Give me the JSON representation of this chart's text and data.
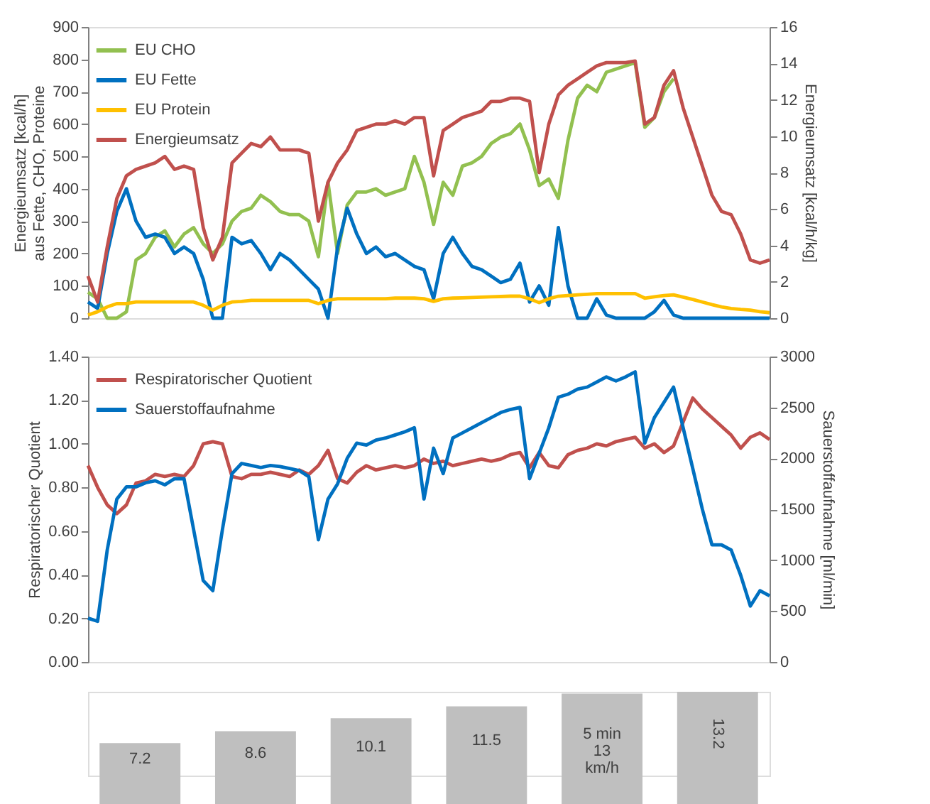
{
  "chart_data": [
    {
      "type": "line",
      "ylabel": "Energieumsatz [kcal/h]\naus  Fette, CHO, Proteine",
      "y2label": "Energieumsatz [kcal/h/kg]",
      "categories": [
        null,
        null,
        null,
        null,
        null,
        null,
        null,
        null,
        null,
        null,
        null,
        null,
        null,
        null,
        null,
        null,
        null,
        null,
        null,
        null,
        null,
        null,
        null,
        null,
        null,
        null,
        null,
        null,
        null,
        null,
        null,
        null,
        null,
        null,
        null,
        null,
        null,
        null,
        null,
        null,
        null,
        null,
        null,
        null,
        null,
        null,
        null,
        null,
        null,
        null,
        null,
        null,
        null,
        null,
        null,
        null,
        null,
        null,
        null,
        null,
        null,
        null,
        null,
        null,
        null,
        null,
        null,
        null,
        null,
        null,
        null,
        null
      ],
      "series": [
        {
          "name": "EU CHO",
          "color": "#92c050",
          "values": [
            80,
            60,
            0,
            0,
            20,
            180,
            200,
            250,
            270,
            220,
            260,
            280,
            230,
            200,
            230,
            300,
            330,
            340,
            380,
            360,
            330,
            320,
            320,
            300,
            190,
            420,
            200,
            350,
            390,
            390,
            400,
            380,
            390,
            400,
            500,
            420,
            290,
            420,
            380,
            470,
            480,
            500,
            540,
            560,
            570,
            600,
            520,
            410,
            430,
            370,
            550,
            680,
            720,
            700,
            760,
            770,
            780,
            790,
            590,
            620,
            700,
            740,
            null,
            null,
            null,
            null,
            null,
            null,
            null,
            null,
            null,
            null
          ]
        },
        {
          "name": "EU Fette",
          "color": "#0070c0",
          "values": [
            50,
            30,
            200,
            330,
            400,
            300,
            250,
            260,
            250,
            200,
            220,
            200,
            120,
            0,
            0,
            250,
            230,
            240,
            200,
            150,
            200,
            180,
            150,
            120,
            90,
            0,
            220,
            340,
            260,
            200,
            220,
            190,
            200,
            180,
            160,
            150,
            60,
            200,
            250,
            200,
            160,
            150,
            130,
            110,
            120,
            170,
            50,
            100,
            40,
            280,
            100,
            0,
            0,
            60,
            10,
            0,
            0,
            0,
            0,
            20,
            55,
            10,
            0,
            0,
            0,
            0,
            0,
            0,
            0,
            0,
            0,
            0
          ]
        },
        {
          "name": "EU Protein",
          "color": "#ffc000",
          "values": [
            10,
            20,
            35,
            45,
            45,
            50,
            50,
            50,
            50,
            50,
            50,
            50,
            40,
            25,
            40,
            50,
            52,
            55,
            55,
            55,
            55,
            55,
            55,
            55,
            45,
            55,
            60,
            60,
            60,
            60,
            60,
            60,
            62,
            62,
            62,
            60,
            52,
            60,
            62,
            63,
            64,
            65,
            66,
            67,
            68,
            68,
            60,
            48,
            60,
            68,
            70,
            72,
            74,
            76,
            76,
            76,
            76,
            76,
            62,
            66,
            70,
            72,
            65,
            58,
            50,
            42,
            35,
            30,
            27,
            25,
            20,
            17
          ]
        },
        {
          "name": "Energieumsatz",
          "color": "#c0504d",
          "values": [
            130,
            50,
            220,
            370,
            440,
            460,
            470,
            480,
            500,
            460,
            470,
            460,
            280,
            180,
            250,
            480,
            510,
            540,
            530,
            560,
            520,
            520,
            520,
            510,
            300,
            420,
            480,
            520,
            580,
            590,
            600,
            600,
            610,
            600,
            620,
            620,
            440,
            580,
            600,
            620,
            630,
            640,
            670,
            670,
            680,
            680,
            670,
            450,
            600,
            690,
            720,
            740,
            760,
            780,
            790,
            790,
            790,
            795,
            600,
            620,
            720,
            765,
            650,
            560,
            470,
            380,
            330,
            320,
            260,
            180,
            170,
            180
          ]
        }
      ],
      "ylim": [
        0,
        900
      ],
      "yticks": [
        0,
        100,
        200,
        300,
        400,
        500,
        600,
        700,
        800,
        900
      ],
      "y2lim": [
        0,
        16
      ],
      "y2ticks": [
        0,
        2,
        4,
        6,
        8,
        10,
        12,
        14,
        16
      ],
      "grid": false,
      "legend": "top left",
      "tick_labels": "y"
    },
    {
      "type": "line",
      "ylabel": "Respiratorischer Quotient",
      "y2label": "Sauerstoffaufnahme [ml/min]",
      "categories": [
        null,
        null,
        null,
        null,
        null,
        null,
        null,
        null,
        null,
        null,
        null,
        null,
        null,
        null,
        null,
        null,
        null,
        null,
        null,
        null,
        null,
        null,
        null,
        null,
        null,
        null,
        null,
        null,
        null,
        null,
        null,
        null,
        null,
        null,
        null,
        null,
        null,
        null,
        null,
        null,
        null,
        null,
        null,
        null,
        null,
        null,
        null,
        null,
        null,
        null,
        null,
        null,
        null,
        null,
        null,
        null,
        null,
        null,
        null,
        null,
        null,
        null,
        null,
        null,
        null,
        null,
        null,
        null,
        null,
        null,
        null,
        null
      ],
      "series": [
        {
          "name": "Respiratorischer Quotient",
          "color": "#c0504d",
          "values": [
            0.9,
            0.8,
            0.72,
            0.68,
            0.72,
            0.82,
            0.83,
            0.86,
            0.85,
            0.86,
            0.85,
            0.9,
            1.0,
            1.01,
            1.0,
            0.85,
            0.84,
            0.86,
            0.86,
            0.87,
            0.86,
            0.85,
            0.88,
            0.86,
            0.9,
            0.97,
            0.84,
            0.82,
            0.87,
            0.9,
            0.88,
            0.89,
            0.9,
            0.89,
            0.9,
            0.93,
            0.91,
            0.92,
            0.9,
            0.91,
            0.92,
            0.93,
            0.92,
            0.93,
            0.95,
            0.96,
            0.89,
            0.96,
            0.9,
            0.89,
            0.95,
            0.97,
            0.98,
            1.0,
            0.99,
            1.01,
            1.02,
            1.03,
            0.98,
            1.0,
            0.96,
            0.99,
            1.1,
            1.21,
            1.16,
            1.12,
            1.08,
            1.04,
            0.98,
            1.03,
            1.05,
            1.02
          ]
        },
        {
          "name": "Sauerstoffaufnahme",
          "color": "#0070c0",
          "axis": "y2",
          "values": [
            430,
            400,
            1100,
            1600,
            1720,
            1720,
            1760,
            1780,
            1740,
            1800,
            1800,
            1300,
            800,
            700,
            1300,
            1850,
            1950,
            1930,
            1910,
            1930,
            1920,
            1900,
            1880,
            1820,
            1200,
            1600,
            1750,
            2000,
            2150,
            2130,
            2180,
            2200,
            2230,
            2260,
            2300,
            1600,
            2100,
            1850,
            2200,
            2250,
            2300,
            2350,
            2400,
            2450,
            2480,
            2500,
            1800,
            2050,
            2300,
            2600,
            2630,
            2680,
            2700,
            2750,
            2800,
            2760,
            2800,
            2850,
            2150,
            2400,
            2550,
            2700,
            2300,
            1900,
            1500,
            1150,
            1150,
            1100,
            850,
            550,
            700,
            650
          ]
        }
      ],
      "ylim": [
        0,
        1.4
      ],
      "yticks": [
        {
          "value": 0,
          "label": "0.00"
        },
        {
          "value": 0.2,
          "label": "0.20"
        },
        {
          "value": 0.4,
          "label": "0.40"
        },
        {
          "value": 0.6,
          "label": "0.60"
        },
        {
          "value": 0.8,
          "label": "0.80"
        },
        {
          "value": 1.0,
          "label": "1.00"
        },
        {
          "value": 1.2,
          "label": "1.20"
        },
        {
          "value": 1.4,
          "label": "1.40"
        }
      ],
      "y2lim": [
        0,
        3000
      ],
      "y2ticks": [
        0,
        500,
        1000,
        1500,
        2000,
        2500,
        3000
      ],
      "grid": false,
      "legend": "top left",
      "tick_labels": "y"
    },
    {
      "type": "bar",
      "categories": [
        null,
        null,
        null,
        null,
        null,
        null
      ],
      "color": "#bfbfbf",
      "values": [
        7.2,
        8.6,
        10.1,
        11.5,
        13,
        13.2
      ],
      "ylim": [
        3.4,
        13.2
      ],
      "tick_labels": false,
      "value_labels": [
        "7.2",
        "8.6",
        "10.1",
        "11.5",
        "5 min\n13\nkm/h",
        "13.2"
      ]
    }
  ]
}
